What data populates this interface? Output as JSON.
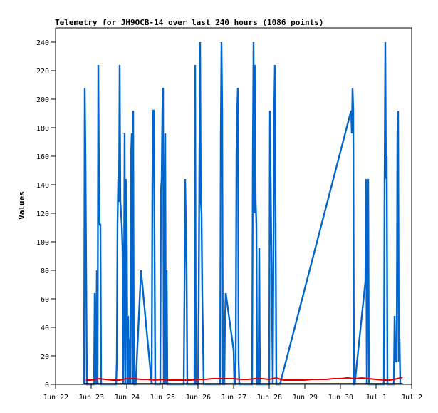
{
  "chart_data": {
    "type": "line",
    "title": "Telemetry for JH9OCB-14 over last 240 hours (1086 points)",
    "xlabel": "",
    "ylabel": "Values",
    "x_ticks": [
      "Jun 22",
      "Jun 23",
      "Jun 24",
      "Jun 25",
      "Jun 26",
      "Jun 27",
      "Jun 28",
      "Jun 29",
      "Jun 30",
      "Jul 1",
      "Jul 2"
    ],
    "xlim": [
      0,
      10
    ],
    "ylim": [
      0,
      250
    ],
    "y_ticks": [
      0,
      20,
      40,
      60,
      80,
      100,
      120,
      140,
      160,
      180,
      200,
      220,
      240
    ],
    "grid": false,
    "colors": {
      "series_blue": "#0066cc",
      "series_red": "#dd0000",
      "series_black": "#000000"
    },
    "series": [
      {
        "color": "#0066cc",
        "x": [
          0.8,
          0.82,
          0.84,
          0.88,
          1.08,
          1.1,
          1.13,
          1.16,
          1.18,
          1.2,
          1.22,
          1.24,
          1.26,
          1.28,
          1.3,
          1.34,
          1.7,
          1.72,
          1.74,
          1.76,
          1.78,
          1.8,
          1.82,
          1.84,
          1.86,
          1.88,
          1.9,
          1.92,
          1.94,
          1.96,
          1.98,
          2.0,
          2.02,
          2.04,
          2.06,
          2.08,
          2.1,
          2.12,
          2.14,
          2.16,
          2.18,
          2.2,
          2.22,
          2.25,
          2.4,
          2.7,
          2.72,
          2.74,
          2.76,
          2.8,
          2.9,
          2.94,
          2.96,
          2.98,
          3.0,
          3.02,
          3.04,
          3.06,
          3.08,
          3.1,
          3.12,
          3.14,
          3.16,
          3.2,
          3.4,
          3.6,
          3.62,
          3.64,
          3.66,
          3.68,
          3.7,
          3.9,
          3.92,
          3.94,
          4.0,
          4.02,
          4.04,
          4.06,
          4.08,
          4.1,
          4.12,
          4.14,
          4.16,
          4.18,
          4.2,
          4.6,
          4.62,
          4.64,
          4.66,
          4.68,
          4.7,
          4.72,
          4.74,
          4.76,
          4.78,
          5.0,
          5.02,
          5.04,
          5.06,
          5.08,
          5.1,
          5.12,
          5.14,
          5.16,
          5.18,
          5.2,
          5.22,
          5.5,
          5.52,
          5.54,
          5.56,
          5.58,
          5.6,
          5.62,
          5.64,
          5.66,
          5.68,
          5.7,
          5.72,
          5.74,
          5.76,
          5.8,
          6.0,
          6.02,
          6.1,
          6.14,
          6.16,
          6.2,
          6.3,
          8.3,
          8.32,
          8.34,
          8.36,
          8.38,
          8.4,
          8.7,
          8.72,
          8.74,
          8.76,
          8.78,
          8.8,
          8.82,
          9.2,
          9.22,
          9.24,
          9.26,
          9.28,
          9.3,
          9.32,
          9.34,
          9.36,
          9.38,
          9.5,
          9.52,
          9.54,
          9.56,
          9.58,
          9.6,
          9.62,
          9.64,
          9.66,
          9.68
        ],
        "y": [
          0,
          208,
          160,
          0,
          0,
          64,
          0,
          80,
          0,
          224,
          144,
          112,
          112,
          0,
          0,
          0,
          0,
          16,
          112,
          144,
          128,
          224,
          128,
          120,
          112,
          96,
          0,
          64,
          176,
          0,
          144,
          108,
          0,
          48,
          0,
          32,
          0,
          160,
          176,
          0,
          192,
          0,
          0,
          0,
          80,
          0,
          144,
          192,
          192,
          0,
          0,
          0,
          136,
          144,
          192,
          208,
          0,
          96,
          176,
          0,
          80,
          0,
          0,
          0,
          0,
          0,
          64,
          144,
          112,
          80,
          0,
          0,
          224,
          0,
          0,
          56,
          160,
          240,
          128,
          120,
          64,
          32,
          0,
          0,
          0,
          0,
          0,
          176,
          240,
          192,
          0,
          0,
          0,
          48,
          64,
          24,
          0,
          0,
          16,
          160,
          192,
          208,
          16,
          0,
          0,
          0,
          0,
          0,
          0,
          160,
          240,
          120,
          224,
          128,
          112,
          0,
          0,
          0,
          96,
          0,
          0,
          0,
          0,
          192,
          0,
          192,
          224,
          0,
          0,
          192,
          176,
          208,
          192,
          0,
          0,
          72,
          144,
          0,
          96,
          144,
          0,
          0,
          0,
          0,
          144,
          240,
          144,
          160,
          0,
          0,
          0,
          0,
          0,
          48,
          24,
          16,
          16,
          176,
          192,
          16,
          32,
          0
        ]
      },
      {
        "color": "#dd0000",
        "x": [
          0.85,
          1.0,
          1.2,
          1.4,
          1.6,
          1.8,
          2.0,
          2.2,
          2.4,
          2.6,
          2.8,
          3.0,
          3.2,
          3.4,
          3.6,
          3.8,
          4.0,
          4.2,
          4.4,
          4.6,
          4.8,
          5.0,
          5.2,
          5.4,
          5.6,
          5.8,
          6.0,
          6.2,
          6.4,
          6.6,
          6.8,
          7.0,
          7.2,
          7.4,
          7.6,
          7.8,
          8.0,
          8.2,
          8.4,
          8.6,
          8.8,
          9.0,
          9.2,
          9.4,
          9.6,
          9.75
        ],
        "y": [
          3,
          3,
          4,
          3.5,
          3,
          3,
          4,
          4,
          3.5,
          3.5,
          3,
          3.5,
          3,
          3,
          3,
          3,
          3.5,
          3.5,
          4,
          4,
          4,
          4,
          3.5,
          3.5,
          4,
          4,
          3.5,
          4.5,
          3,
          3,
          3,
          3,
          3.5,
          3.5,
          3.5,
          4,
          4,
          4.5,
          4,
          4.5,
          4,
          3.5,
          3,
          3,
          4,
          5
        ]
      },
      {
        "color": "#000000",
        "x": [
          0.8,
          9.75
        ],
        "y": [
          0.5,
          0.5
        ]
      }
    ]
  }
}
